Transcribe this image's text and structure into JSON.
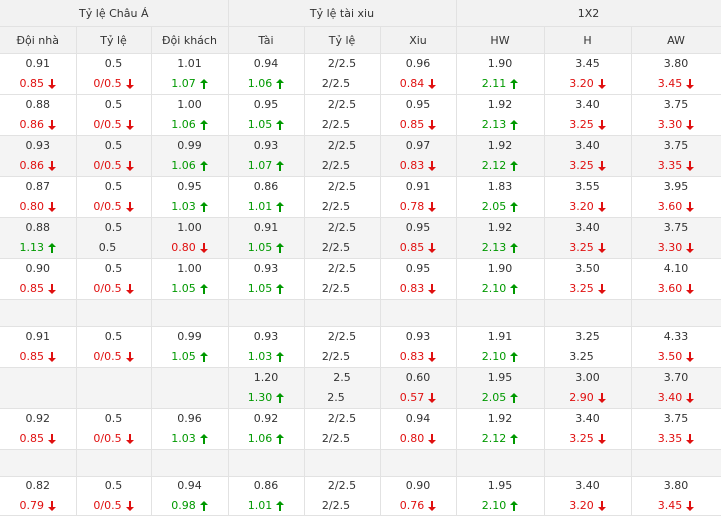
{
  "groups": [
    "Tỷ lệ Châu Á",
    "Tỷ lệ tài xiu",
    "1X2"
  ],
  "columns": [
    "Đội nhà",
    "Tỷ lệ",
    "Đội khách",
    "Tài",
    "Tỷ lệ",
    "Xiu",
    "HW",
    "H",
    "AW"
  ],
  "colors": {
    "up": "#009900",
    "down": "#e01010",
    "neutral": "#333333",
    "header_bg": "#f2f2f2",
    "alt_bg": "#f4f4f4"
  },
  "icons": {
    "up": "arrow-up-icon",
    "down": "arrow-down-icon"
  },
  "rows": [
    {
      "alt": false,
      "cells": [
        [
          "0.91",
          "0.85",
          "down"
        ],
        [
          "0.5",
          "0/0.5",
          "down"
        ],
        [
          "1.01",
          "1.07",
          "up"
        ],
        [
          "0.94",
          "1.06",
          "up"
        ],
        [
          "2/2.5",
          "2/2.5",
          ""
        ],
        [
          "0.96",
          "0.84",
          "down"
        ],
        [
          "1.90",
          "2.11",
          "up"
        ],
        [
          "3.45",
          "3.20",
          "down"
        ],
        [
          "3.80",
          "3.45",
          "down"
        ]
      ]
    },
    {
      "alt": false,
      "cells": [
        [
          "0.88",
          "0.86",
          "down"
        ],
        [
          "0.5",
          "0/0.5",
          "down"
        ],
        [
          "1.00",
          "1.06",
          "up"
        ],
        [
          "0.95",
          "1.05",
          "up"
        ],
        [
          "2/2.5",
          "2/2.5",
          ""
        ],
        [
          "0.95",
          "0.85",
          "down"
        ],
        [
          "1.92",
          "2.13",
          "up"
        ],
        [
          "3.40",
          "3.25",
          "down"
        ],
        [
          "3.75",
          "3.30",
          "down"
        ]
      ]
    },
    {
      "alt": true,
      "cells": [
        [
          "0.93",
          "0.86",
          "down"
        ],
        [
          "0.5",
          "0/0.5",
          "down"
        ],
        [
          "0.99",
          "1.06",
          "up"
        ],
        [
          "0.93",
          "1.07",
          "up"
        ],
        [
          "2/2.5",
          "2/2.5",
          ""
        ],
        [
          "0.97",
          "0.83",
          "down"
        ],
        [
          "1.92",
          "2.12",
          "up"
        ],
        [
          "3.40",
          "3.25",
          "down"
        ],
        [
          "3.75",
          "3.35",
          "down"
        ]
      ]
    },
    {
      "alt": false,
      "cells": [
        [
          "0.87",
          "0.80",
          "down"
        ],
        [
          "0.5",
          "0/0.5",
          "down"
        ],
        [
          "0.95",
          "1.03",
          "up"
        ],
        [
          "0.86",
          "1.01",
          "up"
        ],
        [
          "2/2.5",
          "2/2.5",
          ""
        ],
        [
          "0.91",
          "0.78",
          "down"
        ],
        [
          "1.83",
          "2.05",
          "up"
        ],
        [
          "3.55",
          "3.20",
          "down"
        ],
        [
          "3.95",
          "3.60",
          "down"
        ]
      ]
    },
    {
      "alt": true,
      "cells": [
        [
          "0.88",
          "1.13",
          "up"
        ],
        [
          "0.5",
          "0.5",
          ""
        ],
        [
          "1.00",
          "0.80",
          "down"
        ],
        [
          "0.91",
          "1.05",
          "up"
        ],
        [
          "2/2.5",
          "2/2.5",
          ""
        ],
        [
          "0.95",
          "0.85",
          "down"
        ],
        [
          "1.92",
          "2.13",
          "up"
        ],
        [
          "3.40",
          "3.25",
          "down"
        ],
        [
          "3.75",
          "3.30",
          "down"
        ]
      ]
    },
    {
      "alt": false,
      "cells": [
        [
          "0.90",
          "0.85",
          "down"
        ],
        [
          "0.5",
          "0/0.5",
          "down"
        ],
        [
          "1.00",
          "1.05",
          "up"
        ],
        [
          "0.93",
          "1.05",
          "up"
        ],
        [
          "2/2.5",
          "2/2.5",
          ""
        ],
        [
          "0.95",
          "0.83",
          "down"
        ],
        [
          "1.90",
          "2.10",
          "up"
        ],
        [
          "3.50",
          "3.25",
          "down"
        ],
        [
          "4.10",
          "3.60",
          "down"
        ]
      ]
    },
    {
      "alt": true,
      "empty": true,
      "cells": []
    },
    {
      "alt": false,
      "cells": [
        [
          "0.91",
          "0.85",
          "down"
        ],
        [
          "0.5",
          "0/0.5",
          "down"
        ],
        [
          "0.99",
          "1.05",
          "up"
        ],
        [
          "0.93",
          "1.03",
          "up"
        ],
        [
          "2/2.5",
          "2/2.5",
          ""
        ],
        [
          "0.93",
          "0.83",
          "down"
        ],
        [
          "1.91",
          "2.10",
          "up"
        ],
        [
          "3.25",
          "3.25",
          ""
        ],
        [
          "4.33",
          "3.50",
          "down"
        ]
      ]
    },
    {
      "alt": true,
      "cells": [
        [
          "",
          "",
          ""
        ],
        [
          "",
          "",
          ""
        ],
        [
          "",
          "",
          ""
        ],
        [
          "1.20",
          "1.30",
          "up"
        ],
        [
          "2.5",
          "2.5",
          ""
        ],
        [
          "0.60",
          "0.57",
          "down"
        ],
        [
          "1.95",
          "2.05",
          "up"
        ],
        [
          "3.00",
          "2.90",
          "down"
        ],
        [
          "3.70",
          "3.40",
          "down"
        ]
      ]
    },
    {
      "alt": false,
      "cells": [
        [
          "0.92",
          "0.85",
          "down"
        ],
        [
          "0.5",
          "0/0.5",
          "down"
        ],
        [
          "0.96",
          "1.03",
          "up"
        ],
        [
          "0.92",
          "1.06",
          "up"
        ],
        [
          "2/2.5",
          "2/2.5",
          ""
        ],
        [
          "0.94",
          "0.80",
          "down"
        ],
        [
          "1.92",
          "2.12",
          "up"
        ],
        [
          "3.40",
          "3.25",
          "down"
        ],
        [
          "3.75",
          "3.35",
          "down"
        ]
      ]
    },
    {
      "alt": true,
      "empty": true,
      "cells": []
    },
    {
      "alt": false,
      "short": true,
      "cells": [
        [
          "0.82",
          "0.79",
          "down"
        ],
        [
          "0.5",
          "0/0.5",
          "down"
        ],
        [
          "0.94",
          "0.98",
          "up"
        ],
        [
          "0.86",
          "1.01",
          "up"
        ],
        [
          "2/2.5",
          "2/2.5",
          ""
        ],
        [
          "0.90",
          "0.76",
          "down"
        ],
        [
          "1.95",
          "2.10",
          "up"
        ],
        [
          "3.40",
          "3.20",
          "down"
        ],
        [
          "3.80",
          "3.45",
          "down"
        ]
      ]
    }
  ]
}
